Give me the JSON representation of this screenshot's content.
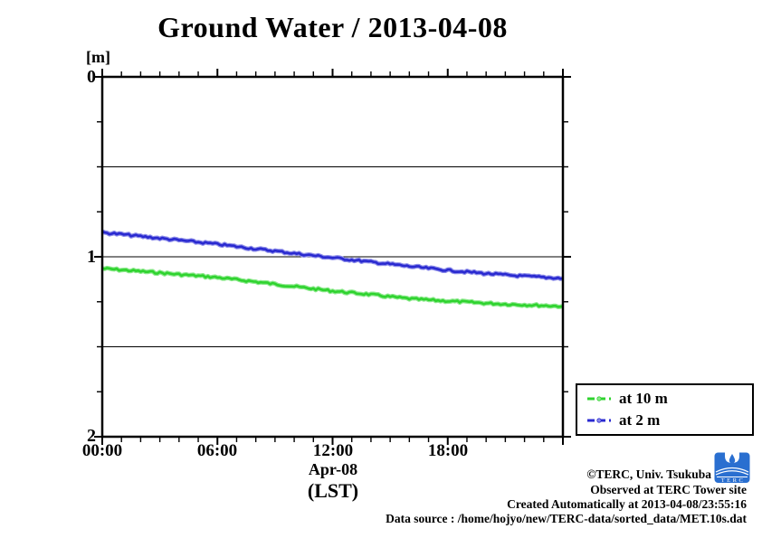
{
  "title": "Ground Water / 2013-04-08",
  "axes": {
    "y": {
      "unit": "[m]",
      "labels": [
        "0",
        "1",
        "2"
      ]
    },
    "x": {
      "labels": [
        "00:00",
        "06:00",
        "12:00",
        "18:00"
      ],
      "date_label": "Apr-08",
      "tz_label": "(LST)"
    }
  },
  "legend": {
    "items": [
      {
        "label": "at 10 m",
        "color": "#2fd32f"
      },
      {
        "label": "at 2 m",
        "color": "#2a2ad0"
      }
    ]
  },
  "credits": {
    "line1": "©TERC, Univ. Tsukuba",
    "line2": "Observed at TERC Tower site",
    "line3": "Created Automatically at 2013-04-08/23:55:16",
    "line4": "Data source : /home/hojyo/new/TERC-data/sorted_data/MET.10s.dat"
  },
  "logo": {
    "text": "TERC",
    "color": "#2a6fd0"
  },
  "chart_data": {
    "type": "line",
    "title": "Ground Water / 2013-04-08",
    "xlabel": "Apr-08 (LST)",
    "ylabel": "[m]",
    "xlim": [
      0,
      24
    ],
    "ylim": [
      0,
      2
    ],
    "y_inverted_depth_axis": true,
    "x_major_tick_hours": [
      0,
      6,
      12,
      18,
      24
    ],
    "x_minor_tick_step_hours": 1,
    "y_major_tick_step": 1,
    "y_minor_tick_step": 0.25,
    "grid_y": [
      0.5,
      1.0,
      1.5
    ],
    "grid_x": [],
    "legend_position": "outside-right-bottom",
    "x": [
      0,
      1,
      2,
      3,
      4,
      5,
      6,
      7,
      8,
      9,
      10,
      11,
      12,
      13,
      14,
      15,
      16,
      17,
      18,
      19,
      20,
      21,
      22,
      23,
      24
    ],
    "series": [
      {
        "name": "at 10 m",
        "color": "#2fd32f",
        "halo": "#8ce98c",
        "values": [
          1.065,
          1.073,
          1.081,
          1.089,
          1.098,
          1.106,
          1.115,
          1.127,
          1.139,
          1.152,
          1.165,
          1.178,
          1.19,
          1.2,
          1.21,
          1.222,
          1.233,
          1.24,
          1.246,
          1.252,
          1.258,
          1.263,
          1.267,
          1.271,
          1.275
        ]
      },
      {
        "name": "at 2 m",
        "color": "#2a2ad0",
        "halo": "#8c8ce9",
        "values": [
          0.865,
          0.875,
          0.886,
          0.897,
          0.908,
          0.919,
          0.93,
          0.943,
          0.956,
          0.968,
          0.981,
          0.993,
          1.005,
          1.017,
          1.029,
          1.041,
          1.053,
          1.064,
          1.075,
          1.084,
          1.093,
          1.101,
          1.108,
          1.114,
          1.12
        ]
      }
    ]
  }
}
